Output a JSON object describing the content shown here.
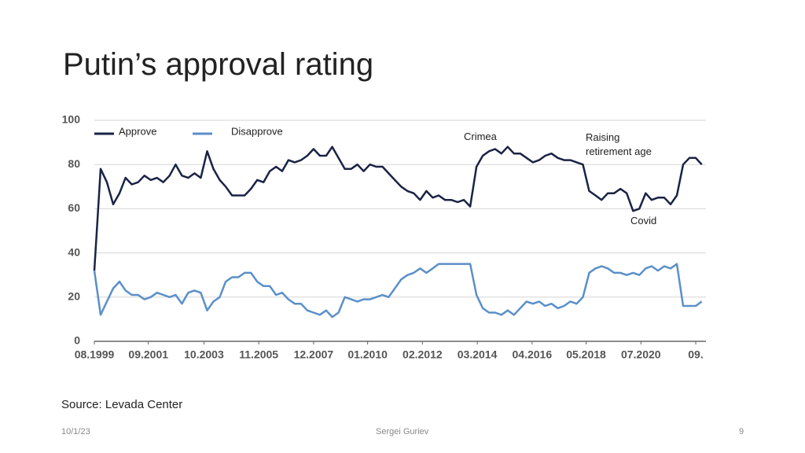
{
  "slide": {
    "title": "Putin’s approval rating",
    "source": "Source: Levada Center",
    "date": "10/1/23",
    "author": "Sergei Guriev",
    "page_number": "9"
  },
  "chart_data": {
    "type": "line",
    "x": [
      1999.58,
      1999.82,
      2000.06,
      2000.3,
      2000.54,
      2000.77,
      2001.01,
      2001.25,
      2001.49,
      2001.73,
      2001.97,
      2002.21,
      2002.45,
      2002.68,
      2002.92,
      2003.16,
      2003.4,
      2003.64,
      2003.88,
      2004.12,
      2004.36,
      2004.59,
      2004.83,
      2005.07,
      2005.31,
      2005.55,
      2005.79,
      2006.03,
      2006.27,
      2006.51,
      2006.74,
      2006.98,
      2007.22,
      2007.46,
      2007.7,
      2007.94,
      2008.18,
      2008.42,
      2008.65,
      2008.89,
      2009.13,
      2009.37,
      2009.61,
      2009.85,
      2010.09,
      2010.33,
      2010.57,
      2010.8,
      2011.04,
      2011.28,
      2011.52,
      2011.76,
      2012.0,
      2012.24,
      2012.48,
      2012.71,
      2012.95,
      2013.19,
      2013.43,
      2013.67,
      2013.91,
      2014.15,
      2014.39,
      2014.63,
      2014.86,
      2015.1,
      2015.34,
      2015.58,
      2015.82,
      2016.06,
      2016.3,
      2016.54,
      2016.77,
      2017.01,
      2017.25,
      2017.49,
      2017.73,
      2017.97,
      2018.21,
      2018.45,
      2018.69,
      2018.92,
      2019.16,
      2019.4,
      2019.64,
      2019.88,
      2020.12,
      2020.36,
      2020.6,
      2020.83,
      2021.07,
      2021.31,
      2021.55,
      2021.79,
      2022.03,
      2022.27,
      2022.51,
      2022.74
    ],
    "series": [
      {
        "name": "Approve",
        "color": "#1a2346",
        "values": [
          32,
          78,
          72,
          62,
          67,
          74,
          71,
          72,
          75,
          73,
          74,
          72,
          75,
          80,
          75,
          74,
          76,
          74,
          86,
          78,
          73,
          70,
          66,
          66,
          66,
          69,
          73,
          72,
          77,
          79,
          77,
          82,
          81,
          82,
          84,
          87,
          84,
          84,
          88,
          83,
          78,
          78,
          80,
          77,
          80,
          79,
          79,
          76,
          73,
          70,
          68,
          67,
          64,
          68,
          65,
          66,
          64,
          64,
          63,
          64,
          61,
          79,
          84,
          86,
          87,
          85,
          88,
          85,
          85,
          83,
          81,
          82,
          84,
          85,
          83,
          82,
          82,
          81,
          80,
          68,
          66,
          64,
          67,
          67,
          69,
          67,
          59,
          60,
          67,
          64,
          65,
          65,
          62,
          66,
          80,
          83,
          83,
          80
        ]
      },
      {
        "name": "Disapprove",
        "color": "#5b8fc9",
        "values": [
          32,
          12,
          18,
          24,
          27,
          23,
          21,
          21,
          19,
          20,
          22,
          21,
          20,
          21,
          17,
          22,
          23,
          22,
          14,
          18,
          20,
          27,
          29,
          29,
          31,
          31,
          27,
          25,
          25,
          21,
          22,
          19,
          17,
          17,
          14,
          13,
          12,
          14,
          11,
          13,
          20,
          19,
          18,
          19,
          19,
          20,
          21,
          20,
          24,
          28,
          30,
          31,
          33,
          31,
          33,
          35,
          35,
          35,
          35,
          35,
          35,
          21,
          15,
          13,
          13,
          12,
          14,
          12,
          15,
          18,
          17,
          18,
          16,
          17,
          15,
          16,
          18,
          17,
          20,
          31,
          33,
          34,
          33,
          31,
          31,
          30,
          31,
          30,
          33,
          34,
          32,
          34,
          33,
          35,
          16,
          16,
          16,
          18
        ]
      }
    ],
    "xlim": [
      1999.58,
      2022.9
    ],
    "xticks": [
      {
        "value": 1999.58,
        "label": "08.1999"
      },
      {
        "value": 2001.64,
        "label": "09.2001"
      },
      {
        "value": 2003.76,
        "label": "10.2003"
      },
      {
        "value": 2005.85,
        "label": "11.2005"
      },
      {
        "value": 2007.94,
        "label": "12.2007"
      },
      {
        "value": 2010.0,
        "label": "01.2010"
      },
      {
        "value": 2012.09,
        "label": "02.2012"
      },
      {
        "value": 2014.18,
        "label": "03.2014"
      },
      {
        "value": 2016.27,
        "label": "04.2016"
      },
      {
        "value": 2018.33,
        "label": "05.2018"
      },
      {
        "value": 2020.42,
        "label": "07.2020"
      },
      {
        "value": 2022.51,
        "label": "09."
      }
    ],
    "ylim": [
      0,
      100
    ],
    "yticks": [
      0,
      20,
      40,
      60,
      80,
      100
    ],
    "grid": true,
    "legend": "upper left",
    "annotations": [
      "Crimea",
      "Raising retirement age",
      "Covid"
    ]
  }
}
